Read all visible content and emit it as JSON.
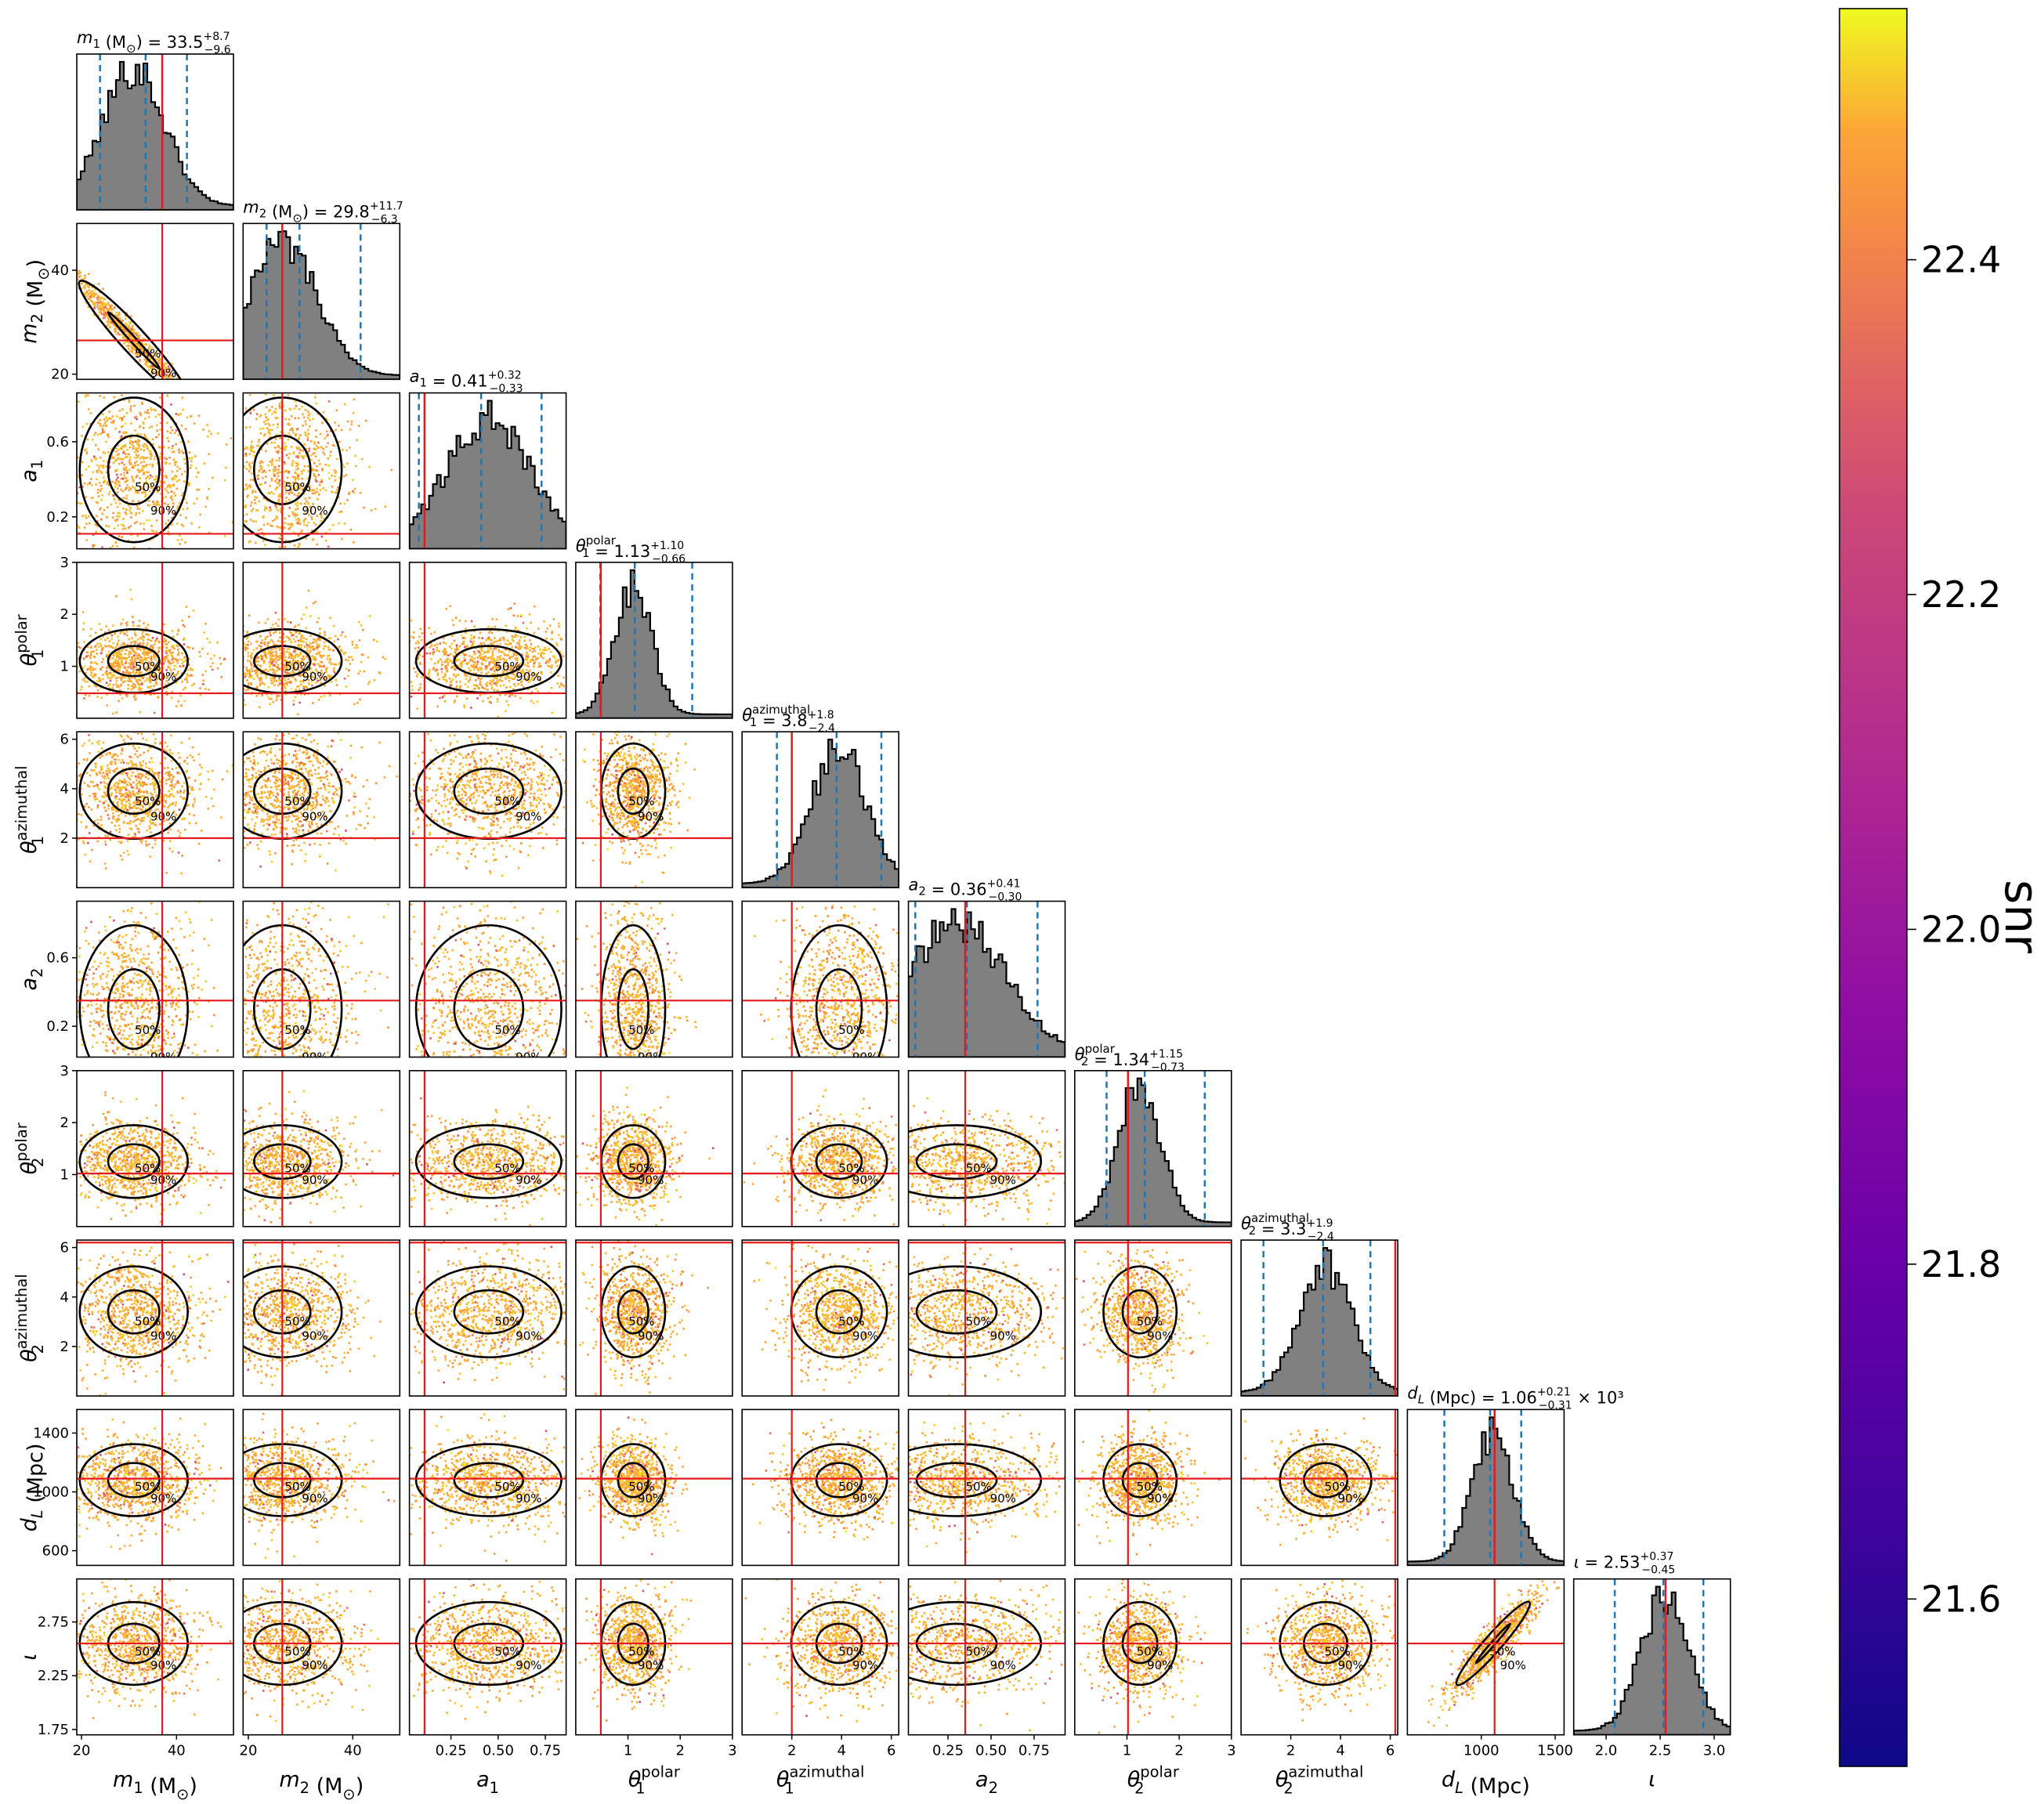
{
  "chart_data": {
    "type": "corner",
    "parameters": [
      {
        "key": "m1",
        "label_sym": "m",
        "label_sub": "1",
        "label_sup": "",
        "unit": " (M",
        "unit_sub": "⊙",
        "unit_end": ")",
        "range": [
          19,
          52
        ],
        "ticks": [
          20,
          40
        ],
        "tick_labels": [
          "20",
          "40"
        ],
        "truth": 37,
        "median": 33.5,
        "plus": "+8.7",
        "minus": "−9.6",
        "title_value": "33.5",
        "title_suffix": "",
        "hist_peak": 31,
        "hist_sigma": 6.5
      },
      {
        "key": "m2",
        "label_sym": "m",
        "label_sub": "2",
        "label_sup": "",
        "unit": " (M",
        "unit_sub": "⊙",
        "unit_end": ")",
        "range": [
          19,
          49
        ],
        "ticks": [
          20,
          40
        ],
        "tick_labels": [
          "20",
          "40"
        ],
        "truth": 26.5,
        "median": 29.8,
        "plus": "+11.7",
        "minus": "−6.3",
        "title_value": "29.8",
        "title_suffix": "",
        "hist_peak": 26.5,
        "hist_sigma": 6.5
      },
      {
        "key": "a1",
        "label_sym": "a",
        "label_sub": "1",
        "label_sup": "",
        "unit": "",
        "unit_sub": "",
        "unit_end": "",
        "range": [
          0.03,
          0.86
        ],
        "ticks": [
          0.25,
          0.5,
          0.75
        ],
        "tick_labels": [
          "0.25",
          "0.50",
          "0.75"
        ],
        "truth": 0.11,
        "median": 0.41,
        "plus": "+0.32",
        "minus": "−0.33",
        "title_value": "0.41",
        "title_suffix": "",
        "hist_peak": 0.45,
        "hist_sigma": 0.22
      },
      {
        "key": "t1p",
        "label_sym": "θ",
        "label_sub": "1",
        "label_sup": "polar",
        "unit": "",
        "unit_sub": "",
        "unit_end": "",
        "range": [
          0,
          3.0
        ],
        "ticks": [
          1,
          2,
          3
        ],
        "tick_labels": [
          "1",
          "2",
          "3"
        ],
        "truth": 0.48,
        "median": 1.13,
        "plus": "+1.10",
        "minus": "−0.66",
        "title_value": "1.13",
        "title_suffix": "",
        "hist_peak": 1.1,
        "hist_sigma": 0.35
      },
      {
        "key": "t1a",
        "label_sym": "θ",
        "label_sub": "1",
        "label_sup": "azimuthal",
        "unit": "",
        "unit_sub": "",
        "unit_end": "",
        "range": [
          0,
          6.3
        ],
        "ticks": [
          2,
          4,
          6
        ],
        "tick_labels": [
          "2",
          "4",
          "6"
        ],
        "truth": 2.0,
        "median": 3.8,
        "plus": "+1.8",
        "minus": "−2.4",
        "title_value": "3.8",
        "title_suffix": "",
        "hist_peak": 3.9,
        "hist_sigma": 1.1
      },
      {
        "key": "a2",
        "label_sym": "a",
        "label_sub": "2",
        "label_sup": "",
        "unit": "",
        "unit_sub": "",
        "unit_end": "",
        "range": [
          0.02,
          0.93
        ],
        "ticks": [
          0.25,
          0.5,
          0.75
        ],
        "tick_labels": [
          "0.25",
          "0.50",
          "0.75"
        ],
        "truth": 0.35,
        "median": 0.36,
        "plus": "+0.41",
        "minus": "−0.30",
        "title_value": "0.36",
        "title_suffix": "",
        "hist_peak": 0.3,
        "hist_sigma": 0.28
      },
      {
        "key": "t2p",
        "label_sym": "θ",
        "label_sub": "2",
        "label_sup": "polar",
        "unit": "",
        "unit_sub": "",
        "unit_end": "",
        "range": [
          0,
          3.0
        ],
        "ticks": [
          1,
          2,
          3
        ],
        "tick_labels": [
          "1",
          "2",
          "3"
        ],
        "truth": 1.02,
        "median": 1.34,
        "plus": "+1.15",
        "minus": "−0.73",
        "title_value": "1.34",
        "title_suffix": "",
        "hist_peak": 1.25,
        "hist_sigma": 0.4
      },
      {
        "key": "t2a",
        "label_sym": "θ",
        "label_sub": "2",
        "label_sup": "azimuthal",
        "unit": "",
        "unit_sub": "",
        "unit_end": "",
        "range": [
          0,
          6.3
        ],
        "ticks": [
          2,
          4,
          6
        ],
        "tick_labels": [
          "2",
          "4",
          "6"
        ],
        "truth": 6.2,
        "median": 3.3,
        "plus": "+1.9",
        "minus": "−2.4",
        "title_value": "3.3",
        "title_suffix": "",
        "hist_peak": 3.4,
        "hist_sigma": 1.05
      },
      {
        "key": "dl",
        "label_sym": "d",
        "label_sub": "L",
        "label_sup": "",
        "unit": " (Mpc)",
        "unit_sub": "",
        "unit_end": "",
        "range": [
          500,
          1560
        ],
        "ticks": [
          1000,
          1500
        ],
        "tick_labels": [
          "1000",
          "1500"
        ],
        "truth": 1090,
        "median": 1.06,
        "plus": "+0.21",
        "minus": "−0.31",
        "title_value": "1.06",
        "title_suffix": " × 10³",
        "hist_peak": 1080,
        "hist_sigma": 140
      },
      {
        "key": "iota",
        "label_sym": "ι",
        "label_sub": "",
        "label_sup": "",
        "unit": "",
        "unit_sub": "",
        "unit_end": "",
        "range": [
          1.7,
          3.15
        ],
        "ticks": [
          2.0,
          2.5,
          3.0
        ],
        "tick_labels": [
          "2.0",
          "2.5",
          "3.0"
        ],
        "truth": 2.55,
        "median": 2.53,
        "plus": "+0.37",
        "minus": "−0.45",
        "title_value": "2.53",
        "title_suffix": "",
        "hist_peak": 2.55,
        "hist_sigma": 0.22
      }
    ],
    "y_ticks": {
      "m2": {
        "ticks": [
          20,
          40
        ],
        "labels": [
          "20",
          "40"
        ]
      },
      "a1": {
        "ticks": [
          0.2,
          0.6
        ],
        "labels": [
          "0.2",
          "0.6"
        ]
      },
      "t1p": {
        "ticks": [
          1,
          2,
          3
        ],
        "labels": [
          "1",
          "2",
          "3"
        ]
      },
      "t1a": {
        "ticks": [
          2,
          4,
          6
        ],
        "labels": [
          "2",
          "4",
          "6"
        ]
      },
      "a2": {
        "ticks": [
          0.2,
          0.6
        ],
        "labels": [
          "0.2",
          "0.6"
        ]
      },
      "t2p": {
        "ticks": [
          1,
          2,
          3
        ],
        "labels": [
          "1",
          "2",
          "3"
        ]
      },
      "t2a": {
        "ticks": [
          2,
          4,
          6
        ],
        "labels": [
          "2",
          "4",
          "6"
        ]
      },
      "dl": {
        "ticks": [
          600,
          1000,
          1400
        ],
        "labels": [
          "600",
          "1000",
          "1400"
        ]
      },
      "iota": {
        "ticks": [
          1.75,
          2.25,
          2.75
        ],
        "labels": [
          "1.75",
          "2.25",
          "2.75"
        ]
      }
    },
    "contour_levels": [
      "50%",
      "90%"
    ],
    "colorbar": {
      "label": "snr",
      "range": [
        21.5,
        22.55
      ],
      "ticks": [
        21.6,
        21.8,
        22.0,
        22.2,
        22.4
      ],
      "tick_labels": [
        "21.6",
        "21.8",
        "22.0",
        "22.2",
        "22.4"
      ],
      "colormap": "plasma"
    },
    "colors": {
      "histogram_fill": "#808080",
      "quantile_lines": "#1f77b4",
      "truth_lines": "#e41a1c",
      "contour": "#000000"
    }
  }
}
